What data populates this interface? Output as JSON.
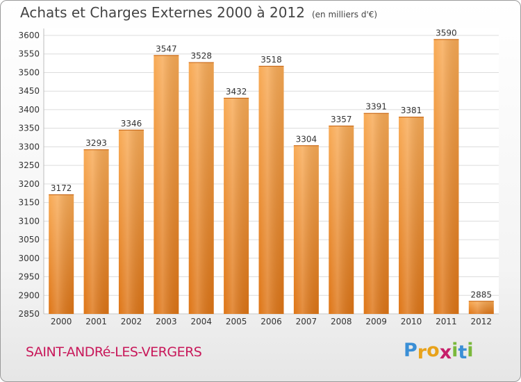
{
  "header": {
    "title": "Achats et Charges Externes 2000 à 2012",
    "unit": "(en milliers d'€)"
  },
  "footer": {
    "city": "SAINT-ANDRé-LES-VERGERS",
    "logo_letters": [
      "P",
      "r",
      "o",
      "x",
      "i",
      "t",
      "i"
    ],
    "logo_colors": [
      "#3a8fd6",
      "#e8a21a",
      "#e8a21a",
      "#c61f6a",
      "#7ab83b",
      "#3a8fd6",
      "#7ab83b"
    ]
  },
  "chart_data": {
    "type": "bar",
    "title": "Achats et Charges Externes 2000 à 2012",
    "subtitle": "(en milliers d'€)",
    "xlabel": "",
    "ylabel": "",
    "categories": [
      "2000",
      "2001",
      "2002",
      "2003",
      "2004",
      "2005",
      "2006",
      "2007",
      "2008",
      "2009",
      "2010",
      "2011",
      "2012"
    ],
    "values": [
      3172,
      3293,
      3346,
      3547,
      3528,
      3432,
      3518,
      3304,
      3357,
      3391,
      3381,
      3590,
      2885
    ],
    "ylim": [
      2850,
      3600
    ],
    "yticks": [
      2850,
      2900,
      2950,
      3000,
      3050,
      3100,
      3150,
      3200,
      3250,
      3300,
      3350,
      3400,
      3450,
      3500,
      3550,
      3600
    ],
    "grid": true,
    "bar_color": "#f0922e"
  }
}
